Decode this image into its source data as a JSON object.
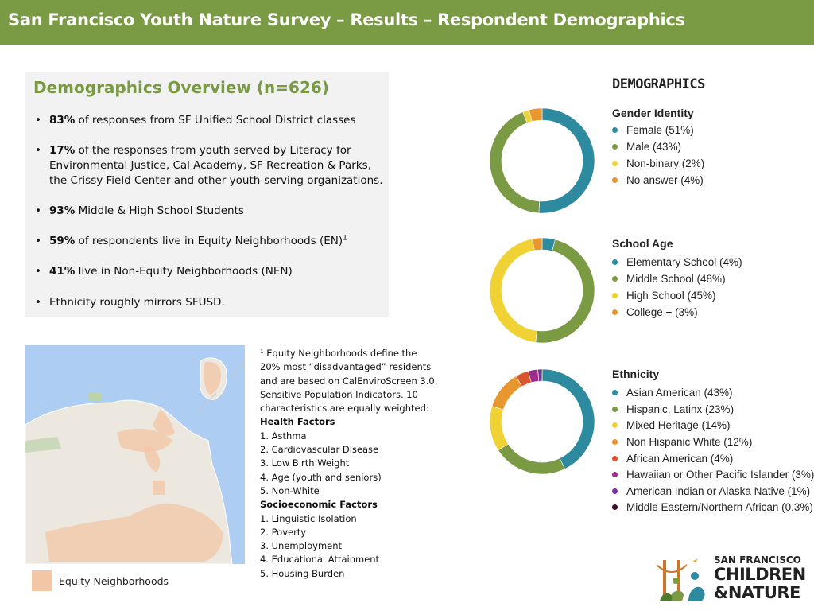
{
  "header": {
    "title": "San Francisco Youth Nature Survey – Results – Respondent Demographics"
  },
  "overview": {
    "title": "Demographics Overview (n=626)",
    "items": [
      {
        "bold": "83%",
        "text": " of responses from SF Unified School District classes"
      },
      {
        "bold": "17%",
        "text": " of the responses from youth served by Literacy for Environmental Justice, Cal Academy, SF Recreation & Parks, the Crissy Field Center and other youth-serving organizations."
      },
      {
        "bold": "93%",
        "text": " Middle & High School Students"
      },
      {
        "bold": "59%",
        "text": " of respondents live in Equity Neighborhoods (EN)",
        "sup": "1"
      },
      {
        "bold": "41%",
        "text": " live in Non-Equity Neighborhoods (NEN)"
      },
      {
        "bold": "",
        "text": "Ethnicity roughly mirrors  SFUSD."
      }
    ]
  },
  "map": {
    "legend_label": "Equity Neighborhoods"
  },
  "footnote": {
    "lines": [
      "¹ Equity Neighborhoods define the",
      "20% most “disadvantaged” residents",
      "and are based on CalEnviroScreen 3.0.",
      "Sensitive Population Indicators. 10",
      "characteristics are equally weighted:"
    ],
    "health_head": "Health Factors",
    "health": [
      "1. Asthma",
      "2. Cardiovascular Disease",
      "3. Low Birth Weight",
      "4. Age (youth and seniors)",
      "5. Non-White"
    ],
    "socio_head": "Socioeconomic Factors",
    "socio": [
      "1. Linguistic Isolation",
      "2. Poverty",
      "3. Unemployment",
      "4. Educational Attainment",
      "5. Housing Burden"
    ]
  },
  "demographics_title": "DEMOGRAPHICS",
  "logo": {
    "line1": "SAN FRANCISCO",
    "line2": "CHILDREN",
    "line3": "&NATURE"
  },
  "chart_data": [
    {
      "type": "pie",
      "donut": true,
      "title": "Gender Identity",
      "categories": [
        "Female (51%)",
        "Male (43%)",
        "Non-binary (2%)",
        "No answer (4%)"
      ],
      "values": [
        51,
        43,
        2,
        4
      ],
      "colors": [
        "#2e8a9e",
        "#7a9a44",
        "#f0d234",
        "#e8972e"
      ],
      "legend": "right"
    },
    {
      "type": "pie",
      "donut": true,
      "title": "School Age",
      "categories": [
        "Elementary School  (4%)",
        "Middle School (48%)",
        "High School (45%)",
        "College + (3%)"
      ],
      "values": [
        4,
        48,
        45,
        3
      ],
      "colors": [
        "#2e8a9e",
        "#7a9a44",
        "#f0d234",
        "#e8972e"
      ],
      "legend": "right"
    },
    {
      "type": "pie",
      "donut": true,
      "title": "Ethnicity",
      "categories": [
        "Asian American (43%)",
        "Hispanic, Latinx (23%)",
        "Mixed Heritage (14%)",
        "Non Hispanic White (12%)",
        "African American (4%)",
        "Hawaiian or Other Pacific Islander (3%)",
        "American Indian or Alaska Native (1%)",
        "Middle Eastern/Northern African (0.3%)"
      ],
      "values": [
        43,
        23,
        14,
        12,
        4,
        3,
        1,
        0.3
      ],
      "colors": [
        "#2e8a9e",
        "#7a9a44",
        "#f0d234",
        "#e8972e",
        "#d9552e",
        "#9a2e8a",
        "#7a2e9a",
        "#3a0e2e"
      ],
      "legend": "right"
    }
  ]
}
